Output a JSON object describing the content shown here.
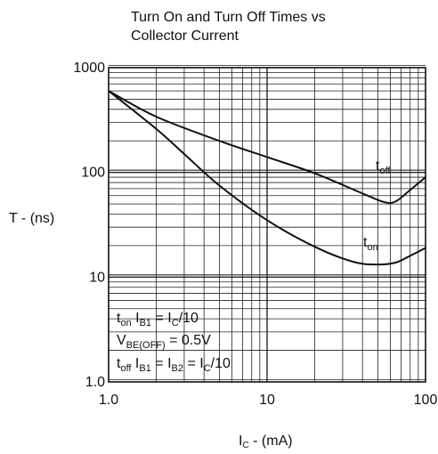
{
  "chart_data": {
    "type": "line",
    "title_lines": [
      "Turn On and Turn Off Times vs",
      "Collector Current"
    ],
    "ylabel": "T - (ns)",
    "xlabel": {
      "main": "I",
      "sub": "C",
      "rest": " - (mA)"
    },
    "x_scale": "log",
    "y_scale": "log",
    "xlim": [
      1,
      100
    ],
    "ylim": [
      1,
      1000
    ],
    "grid": true,
    "x_ticks": [
      {
        "value": 1,
        "label": "1.0"
      },
      {
        "value": 10,
        "label": "10"
      },
      {
        "value": 100,
        "label": "100"
      }
    ],
    "y_ticks": [
      {
        "value": 1,
        "label": "1.0"
      },
      {
        "value": 10,
        "label": "10"
      },
      {
        "value": 100,
        "label": "100"
      },
      {
        "value": 1000,
        "label": "1000"
      }
    ],
    "series": [
      {
        "name": "toff",
        "label": {
          "main": "t",
          "sub": "off"
        },
        "points": [
          [
            1,
            600
          ],
          [
            2,
            340
          ],
          [
            5,
            200
          ],
          [
            10,
            140
          ],
          [
            20,
            98
          ],
          [
            40,
            63
          ],
          [
            55,
            52
          ],
          [
            65,
            53
          ],
          [
            80,
            68
          ],
          [
            100,
            90
          ]
        ]
      },
      {
        "name": "ton",
        "label": {
          "main": "t",
          "sub": "on"
        },
        "points": [
          [
            1,
            600
          ],
          [
            2,
            260
          ],
          [
            3,
            150
          ],
          [
            5,
            75
          ],
          [
            10,
            35
          ],
          [
            20,
            19.5
          ],
          [
            35,
            14
          ],
          [
            50,
            13.2
          ],
          [
            65,
            13.8
          ],
          [
            80,
            16
          ],
          [
            100,
            19
          ]
        ]
      }
    ],
    "annotations": [
      [
        {
          "t": "t"
        },
        {
          "sub": "on"
        },
        {
          "t": " I"
        },
        {
          "sub": "B1"
        },
        {
          "t": " = I"
        },
        {
          "sub": "C"
        },
        {
          "t": "/10"
        }
      ],
      [
        {
          "t": "V"
        },
        {
          "sub": "BE(OFF)"
        },
        {
          "t": " = 0.5V"
        }
      ],
      [
        {
          "t": "t"
        },
        {
          "sub": "off"
        },
        {
          "t": " I"
        },
        {
          "sub": "B1"
        },
        {
          "t": " = I"
        },
        {
          "sub": "B2"
        },
        {
          "t": " = I"
        },
        {
          "sub": "C"
        },
        {
          "t": "/10"
        }
      ]
    ]
  }
}
